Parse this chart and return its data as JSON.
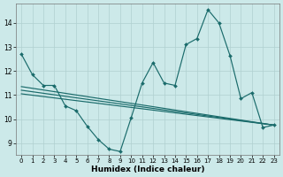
{
  "xlabel": "Humidex (Indice chaleur)",
  "background_color": "#cce9e9",
  "grid_color": "#b0d0d0",
  "line_color": "#1a6b6b",
  "xlim": [
    -0.5,
    23.5
  ],
  "ylim": [
    8.5,
    14.8
  ],
  "yticks": [
    9,
    10,
    11,
    12,
    13,
    14
  ],
  "xticks": [
    0,
    1,
    2,
    3,
    4,
    5,
    6,
    7,
    8,
    9,
    10,
    11,
    12,
    13,
    14,
    15,
    16,
    17,
    18,
    19,
    20,
    21,
    22,
    23
  ],
  "series1_x": [
    0,
    1,
    2,
    3,
    4,
    5,
    6,
    7,
    8,
    9,
    10,
    11,
    12,
    13,
    14,
    15,
    16,
    17,
    18,
    19,
    20,
    21,
    22,
    23
  ],
  "series1_y": [
    12.7,
    11.85,
    11.4,
    11.4,
    10.55,
    10.35,
    9.7,
    9.15,
    8.75,
    8.65,
    10.05,
    11.5,
    12.35,
    11.5,
    11.4,
    13.1,
    13.35,
    14.55,
    14.0,
    12.65,
    10.85,
    11.1,
    9.65,
    9.75
  ],
  "series2_x": [
    0,
    23
  ],
  "series2_y": [
    11.35,
    9.75
  ],
  "series3_x": [
    0,
    23
  ],
  "series3_y": [
    11.2,
    9.75
  ],
  "series4_x": [
    0,
    23
  ],
  "series4_y": [
    11.05,
    9.75
  ],
  "marker_x": [
    0,
    1,
    2,
    3,
    4,
    5,
    6,
    7,
    8,
    9,
    10,
    11,
    12,
    13,
    14,
    15,
    16,
    17,
    18,
    19,
    20,
    21,
    22,
    23
  ],
  "marker_y": [
    12.7,
    11.85,
    11.4,
    11.4,
    10.55,
    10.35,
    9.7,
    9.15,
    8.75,
    8.65,
    10.05,
    11.5,
    12.35,
    11.5,
    11.4,
    13.1,
    13.35,
    14.55,
    14.0,
    12.65,
    10.85,
    11.1,
    9.65,
    9.75
  ]
}
